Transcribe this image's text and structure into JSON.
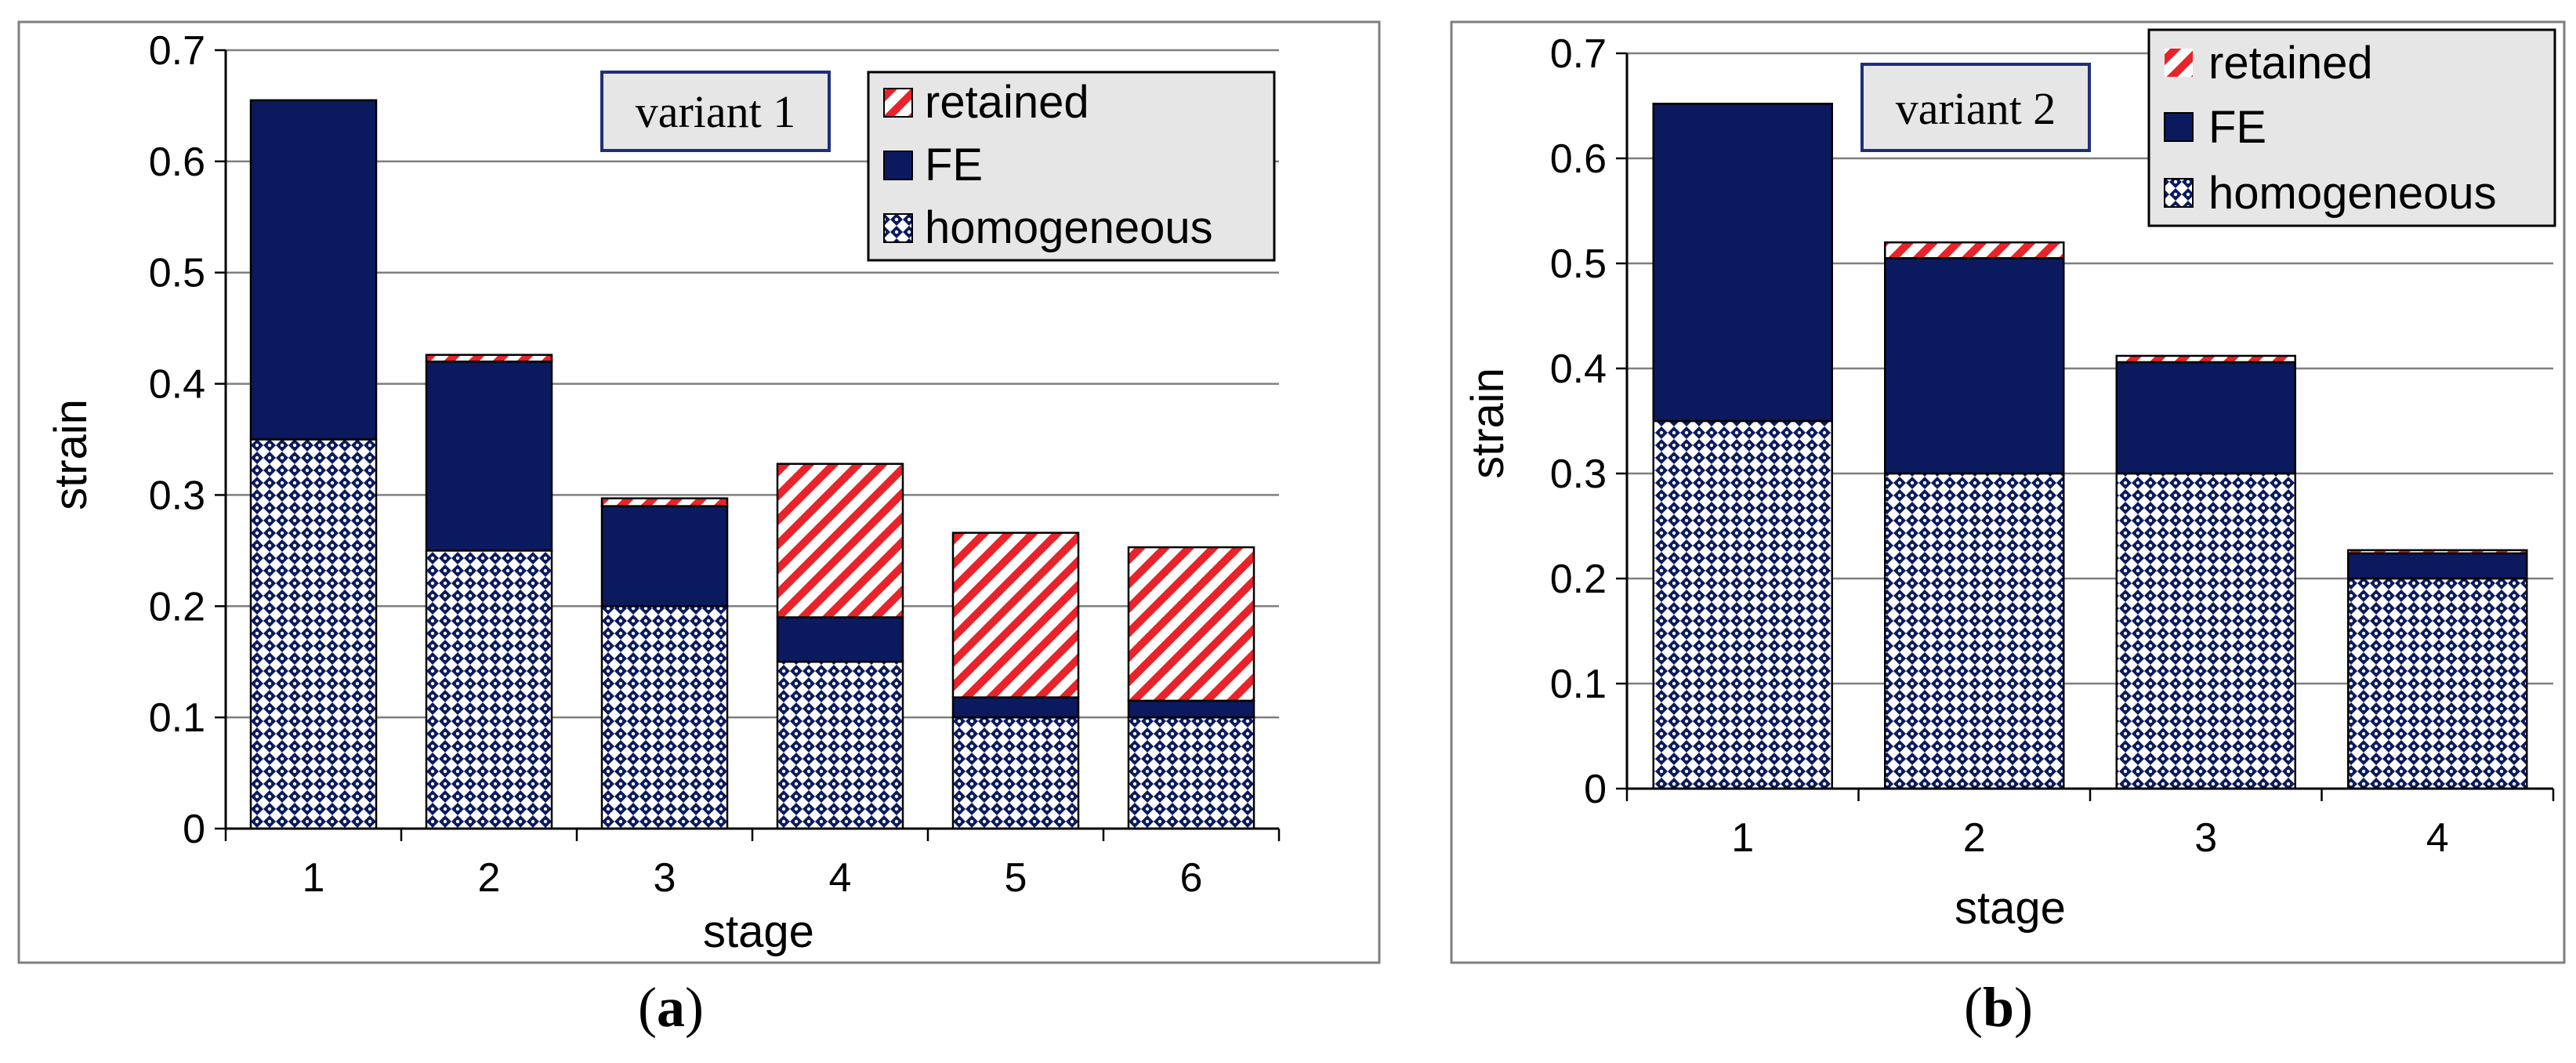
{
  "colors": {
    "navy": "#0b1a5e",
    "red": "#e8232a",
    "grid": "#7f7f7f",
    "legend_bg": "#e6e6e6"
  },
  "chart_data": [
    {
      "type": "bar",
      "stacked": true,
      "panel_label": "a",
      "variant_label": "variant  1",
      "xlabel": "stage",
      "ylabel": "strain",
      "ylim": [
        0,
        0.7
      ],
      "yticks": [
        "0",
        "0.1",
        "0.2",
        "0.3",
        "0.4",
        "0.5",
        "0.6",
        "0.7"
      ],
      "categories": [
        "1",
        "2",
        "3",
        "4",
        "5",
        "6"
      ],
      "series": [
        {
          "name": "homogeneous",
          "values": [
            0.35,
            0.25,
            0.2,
            0.15,
            0.1,
            0.1
          ]
        },
        {
          "name": "FE",
          "values": [
            0.305,
            0.17,
            0.09,
            0.04,
            0.018,
            0.015
          ]
        },
        {
          "name": "retained",
          "values": [
            0.0,
            0.006,
            0.007,
            0.138,
            0.148,
            0.138
          ]
        }
      ],
      "legend": [
        "retained",
        "FE",
        "homogeneous"
      ]
    },
    {
      "type": "bar",
      "stacked": true,
      "panel_label": "b",
      "variant_label": "variant  2",
      "xlabel": "stage",
      "ylabel": "strain",
      "ylim": [
        0,
        0.7
      ],
      "yticks": [
        "0",
        "0.1",
        "0.2",
        "0.3",
        "0.4",
        "0.5",
        "0.6",
        "0.7"
      ],
      "categories": [
        "1",
        "2",
        "3",
        "4"
      ],
      "series": [
        {
          "name": "homogeneous",
          "values": [
            0.35,
            0.3,
            0.3,
            0.2
          ]
        },
        {
          "name": "FE",
          "values": [
            0.302,
            0.205,
            0.106,
            0.024
          ]
        },
        {
          "name": "retained",
          "values": [
            0.0,
            0.015,
            0.006,
            0.003
          ]
        }
      ],
      "legend": [
        "retained",
        "FE",
        "homogeneous"
      ]
    }
  ]
}
